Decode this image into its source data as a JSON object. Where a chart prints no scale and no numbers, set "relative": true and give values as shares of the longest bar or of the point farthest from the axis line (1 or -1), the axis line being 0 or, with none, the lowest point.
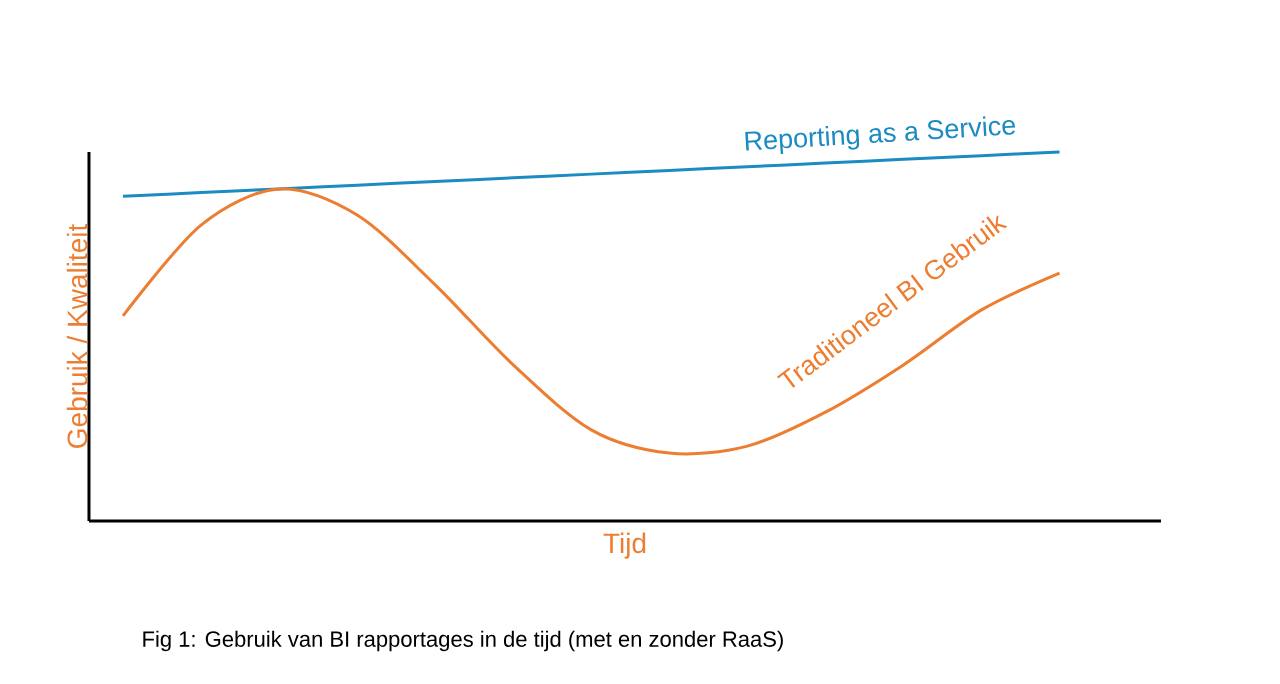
{
  "chart_data": {
    "type": "line",
    "relative": true,
    "xlabel": "Tijd",
    "ylabel": "Gebruik / Kwaliteit",
    "categories": [
      null,
      null,
      null,
      null,
      null,
      null,
      null,
      null,
      null,
      null,
      null,
      null,
      null
    ],
    "series": [
      {
        "name": "Reporting as a Service",
        "color": "#1b8bc1",
        "values": [
          0.88,
          0.89,
          0.9,
          0.91,
          0.92,
          0.93,
          0.94,
          0.95,
          0.96,
          0.97,
          0.98,
          0.99,
          1.0
        ]
      },
      {
        "name": "Traditioneel BI Gebruik",
        "color": "#ed7d31",
        "values": [
          0.556,
          0.802,
          0.9,
          0.829,
          0.64,
          0.423,
          0.247,
          0.184,
          0.203,
          0.295,
          0.423,
          0.572,
          0.672
        ]
      }
    ],
    "annotations": [
      "Fig 1: Gebruik van BI rapportages in de tijd (met en zonder RaaS)"
    ]
  }
}
